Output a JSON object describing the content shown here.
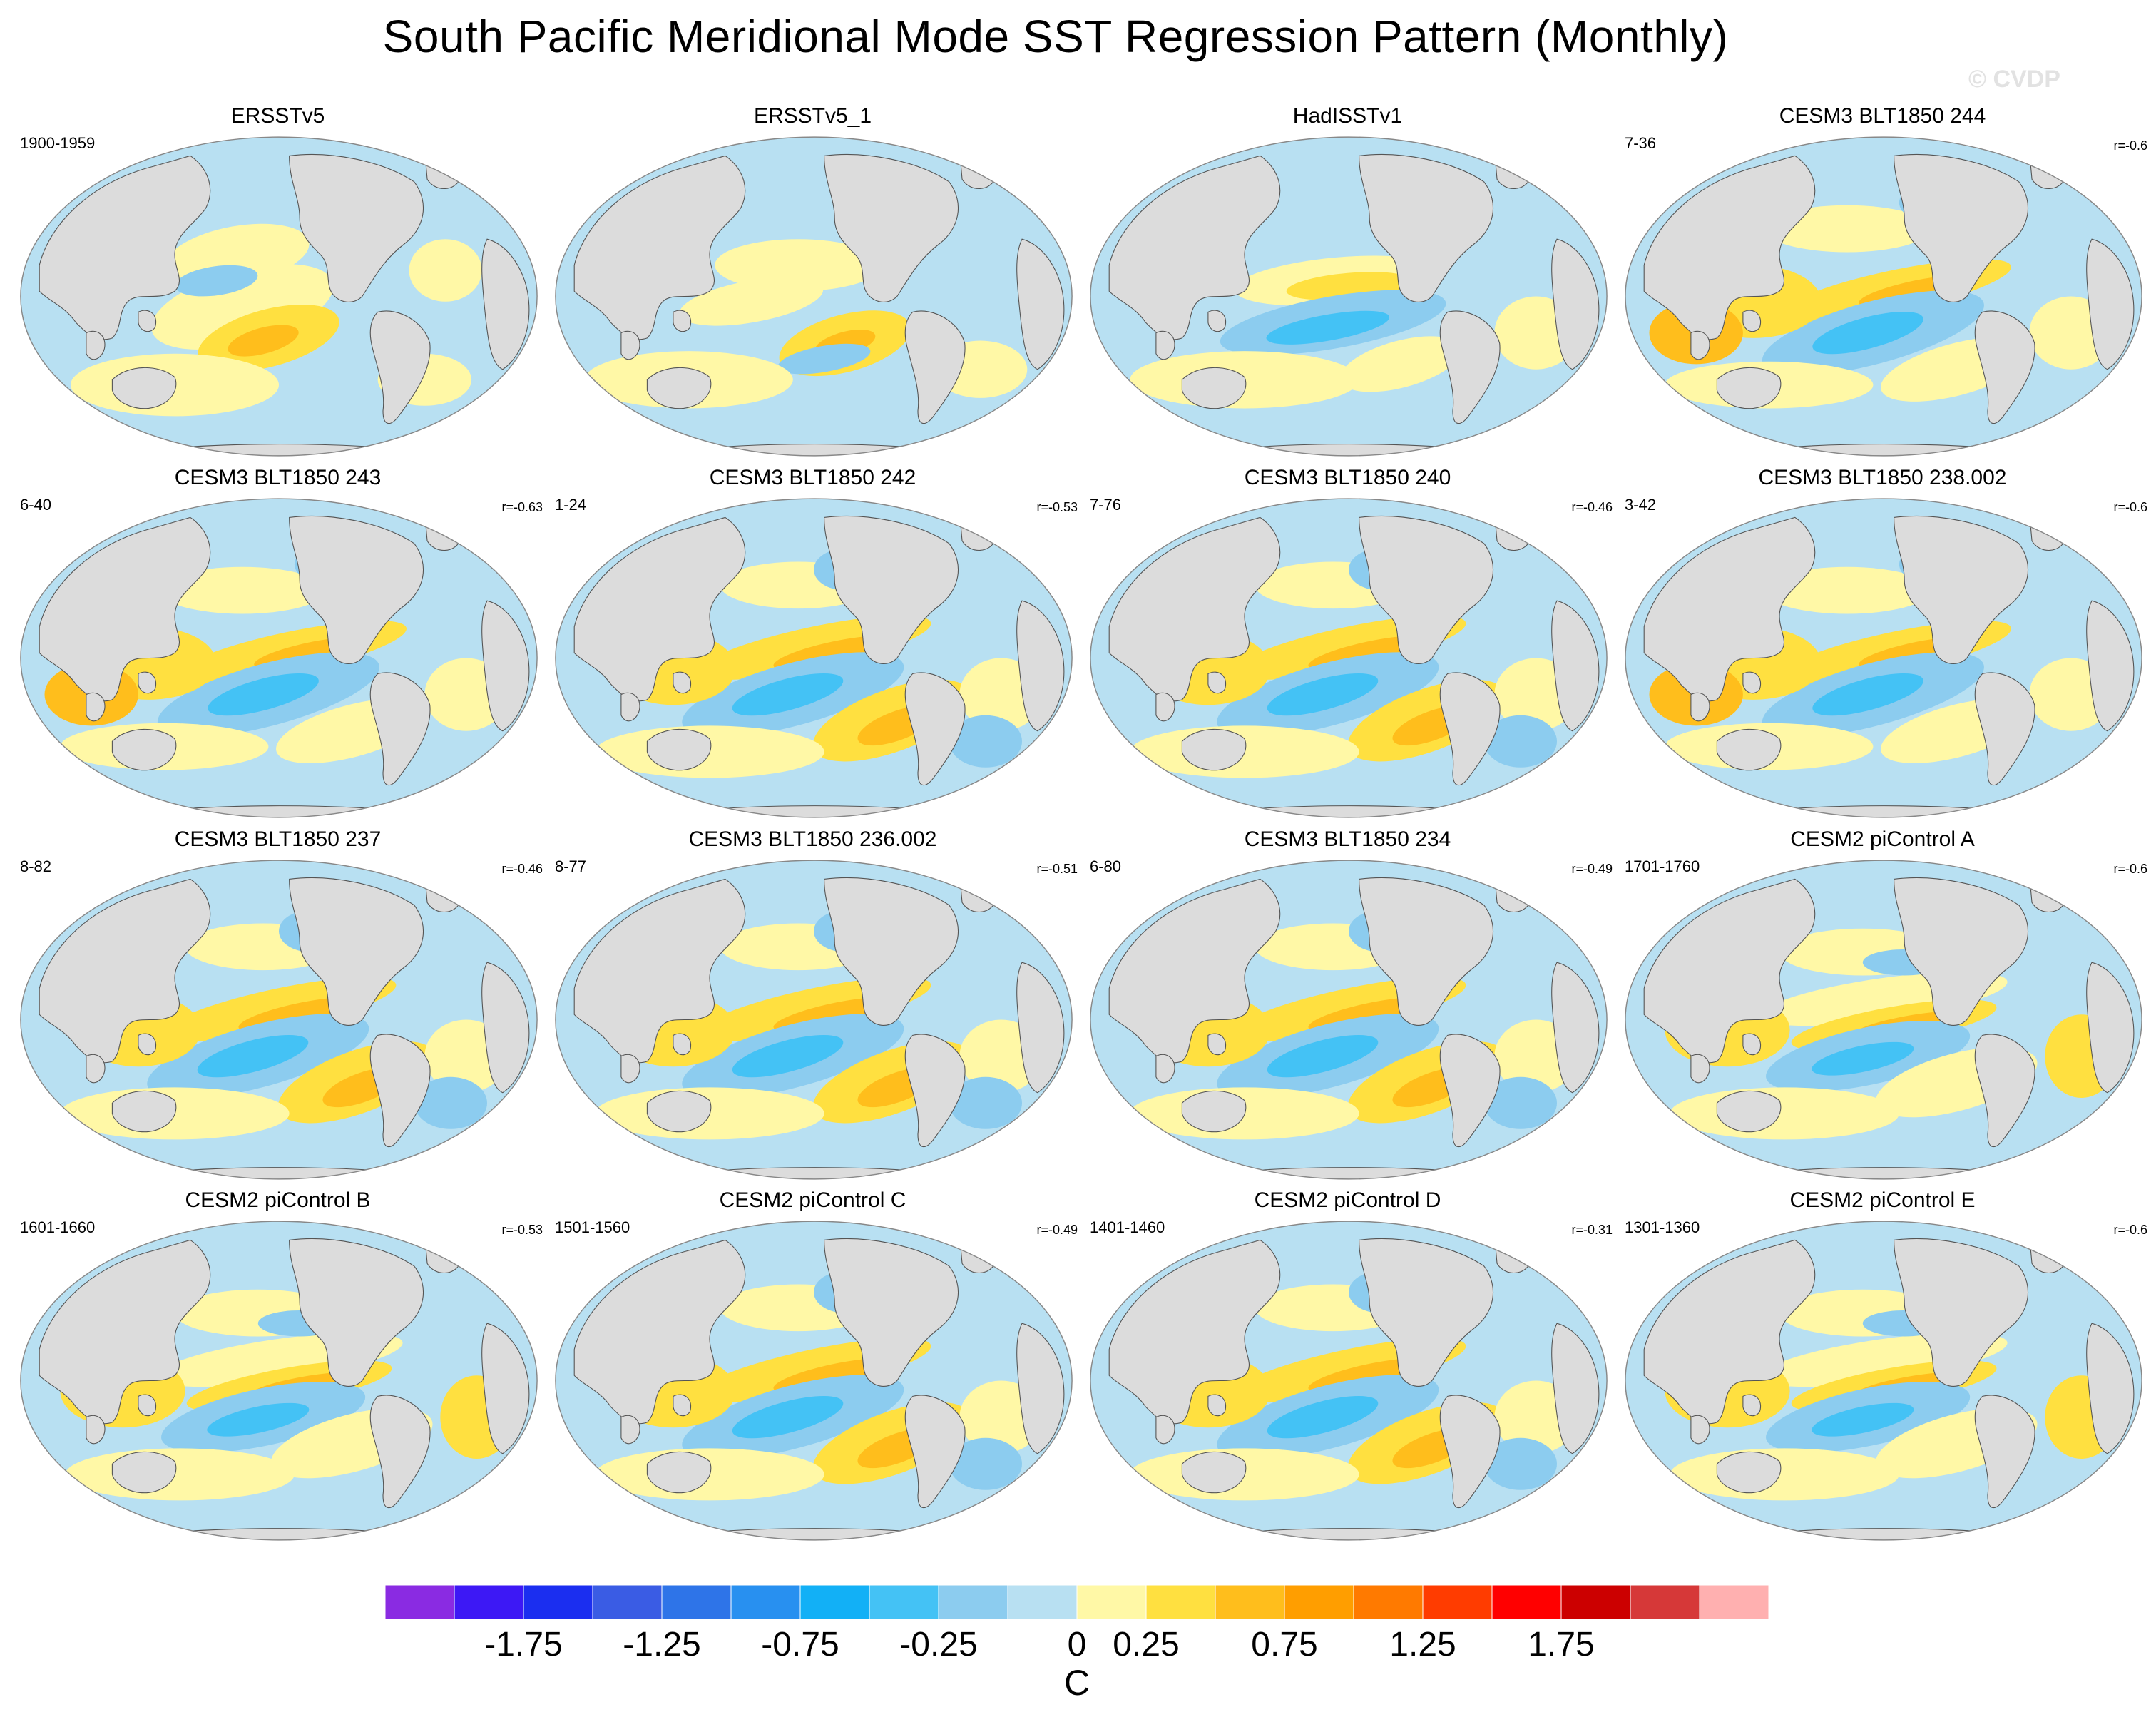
{
  "title": "South Pacific Meridional Mode SST Regression Pattern (Monthly)",
  "watermark": "© CVDP",
  "panels": [
    {
      "title": "ERSSTv5",
      "period": "1900-1959",
      "corr": "",
      "pattern": 0
    },
    {
      "title": "ERSSTv5_1",
      "period": "",
      "corr": "",
      "pattern": 1
    },
    {
      "title": "HadISSTv1",
      "period": "",
      "corr": "",
      "pattern": 2
    },
    {
      "title": "CESM3 BLT1850 244",
      "period": "7-36",
      "corr": "r=-0.6",
      "pattern": 3
    },
    {
      "title": "CESM3 BLT1850 243",
      "period": "6-40",
      "corr": "r=-0.63",
      "pattern": 3
    },
    {
      "title": "CESM3 BLT1850 242",
      "period": "1-24",
      "corr": "r=-0.53",
      "pattern": 4
    },
    {
      "title": "CESM3 BLT1850 240",
      "period": "7-76",
      "corr": "r=-0.46",
      "pattern": 4
    },
    {
      "title": "CESM3 BLT1850 238.002",
      "period": "3-42",
      "corr": "r=-0.6",
      "pattern": 3
    },
    {
      "title": "CESM3 BLT1850 237",
      "period": "8-82",
      "corr": "r=-0.46",
      "pattern": 4
    },
    {
      "title": "CESM3 BLT1850 236.002",
      "period": "8-77",
      "corr": "r=-0.51",
      "pattern": 4
    },
    {
      "title": "CESM3 BLT1850 234",
      "period": "6-80",
      "corr": "r=-0.49",
      "pattern": 4
    },
    {
      "title": "CESM2 piControl A",
      "period": "1701-1760",
      "corr": "r=-0.6",
      "pattern": 5
    },
    {
      "title": "CESM2 piControl B",
      "period": "1601-1660",
      "corr": "r=-0.53",
      "pattern": 5
    },
    {
      "title": "CESM2 piControl C",
      "period": "1501-1560",
      "corr": "r=-0.49",
      "pattern": 4
    },
    {
      "title": "CESM2 piControl D",
      "period": "1401-1460",
      "corr": "r=-0.31",
      "pattern": 4
    },
    {
      "title": "CESM2 piControl E",
      "period": "1301-1360",
      "corr": "r=-0.6",
      "pattern": 5
    }
  ],
  "colorbar": {
    "colors": [
      "#8a2be2",
      "#3d18f5",
      "#1b2ef0",
      "#3a5ce4",
      "#2e74e8",
      "#2890f0",
      "#12b0f6",
      "#44c2f5",
      "#8cccef",
      "#b8e0f2",
      "#fff8a6",
      "#ffe040",
      "#ffbe1c",
      "#ff9e00",
      "#ff7a00",
      "#ff3c00",
      "#ff0000",
      "#cc0000",
      "#d63838",
      "#ffb0b0"
    ],
    "labels": [
      "-1.75",
      "-1.25",
      "-0.75",
      "-0.25",
      "0",
      "0.25",
      "0.75",
      "1.25",
      "1.75"
    ],
    "label_boundary_index": [
      2,
      4,
      6,
      8,
      10,
      11,
      13,
      15,
      17
    ],
    "unit": "C"
  },
  "map_colors": {
    "land": "#dcdcdc",
    "ocean_base": "#b8e0f2",
    "light_warm": "#fff8a6",
    "warm": "#ffe040",
    "warmer": "#ffbe1c",
    "warmest": "#ff9e00",
    "cool": "#8cccef",
    "cooler": "#44c2f5"
  }
}
